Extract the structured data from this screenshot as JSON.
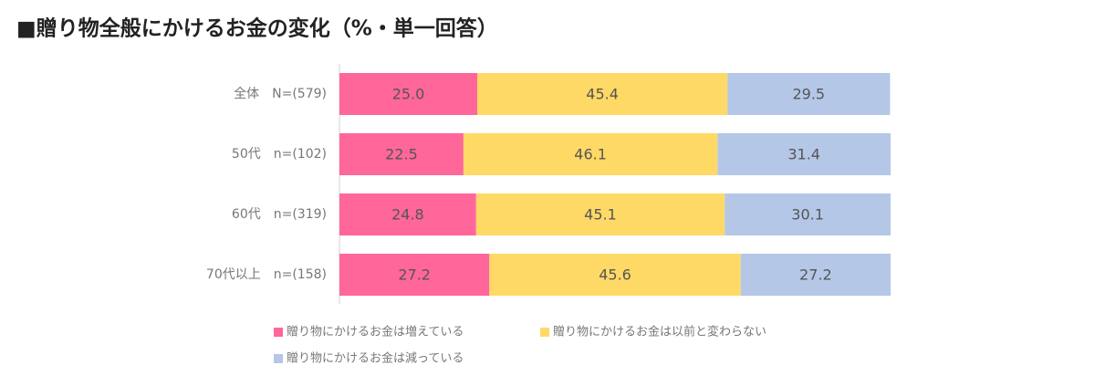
{
  "chart_data": {
    "type": "stacked-bar-horizontal",
    "title": "■贈り物全般にかけるお金の変化（%・単一回答）",
    "categories": [
      "全体　N=(579)",
      "50代　n=(102)",
      "60代　n=(319)",
      "70代以上　n=(158)"
    ],
    "series": [
      {
        "name": "贈り物にかけるお金は増えている",
        "color": "#ff6699",
        "values": [
          25.0,
          22.5,
          24.8,
          27.2
        ],
        "value_labels": [
          "25.0",
          "22.5",
          "24.8",
          "27.2"
        ]
      },
      {
        "name": "贈り物にかけるお金は以前と変わらない",
        "color": "#ffd966",
        "values": [
          45.4,
          46.1,
          45.1,
          45.6
        ],
        "value_labels": [
          "45.4",
          "46.1",
          "45.1",
          "45.6"
        ]
      },
      {
        "name": "贈り物にかけるお金は減っている",
        "color": "#b4c7e7",
        "values": [
          29.5,
          31.4,
          30.1,
          27.2
        ],
        "value_labels": [
          "29.5",
          "31.4",
          "30.1",
          "27.2"
        ]
      }
    ],
    "xlim": [
      0,
      100
    ]
  }
}
